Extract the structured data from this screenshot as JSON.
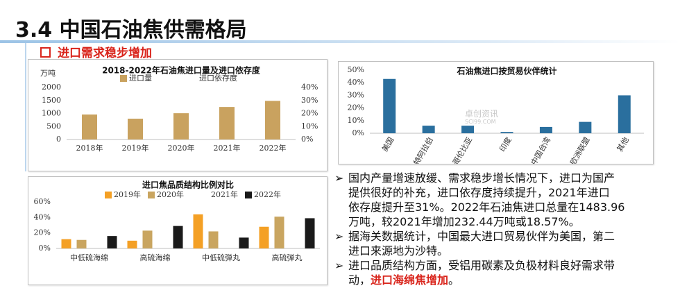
{
  "header": {
    "title": "3.4 中国石油焦供需格局",
    "subtitle": "进口需求稳步增加"
  },
  "watermark": {
    "cn": "卓创资讯",
    "en": "SCI99.COM"
  },
  "chart_data": [
    {
      "type": "bar",
      "title": "2018-2022年石油焦进口量及进口依存度",
      "y_unit": "万吨",
      "categories": [
        "2018年",
        "2019年",
        "2020年",
        "2021年",
        "2022年"
      ],
      "series": [
        {
          "name": "进口量",
          "color": "#c9a25f",
          "values": [
            960,
            800,
            1010,
            1250,
            1484
          ]
        },
        {
          "name": "进口依存度",
          "color": "#ffffff",
          "axis": "y2",
          "type": "line",
          "values": [
            null,
            null,
            null,
            null,
            null
          ]
        }
      ],
      "ylim": [
        0,
        2000
      ],
      "yticks": [
        0,
        500,
        1000,
        1500,
        2000
      ],
      "y2lim": [
        0,
        40
      ],
      "y2ticks": [
        {
          "value": 0,
          "label": "0%"
        },
        {
          "value": 10,
          "label": "10%"
        },
        {
          "value": 20,
          "label": "20%"
        },
        {
          "value": 30,
          "label": "30%"
        },
        {
          "value": 40,
          "label": "40%"
        }
      ]
    },
    {
      "type": "bar",
      "title": "石油焦进口按贸易伙伴统计",
      "categories": [
        "美国",
        "沙特阿拉伯",
        "哥伦比亚",
        "印度",
        "中国台湾",
        "欧洲联盟",
        "其他"
      ],
      "values": [
        43,
        6,
        6,
        1,
        5,
        9,
        30
      ],
      "color": "#2a6f9e",
      "ylim": [
        0,
        50
      ],
      "yticks": [
        {
          "value": 0,
          "label": "0%"
        },
        {
          "value": 10,
          "label": "10%"
        },
        {
          "value": 20,
          "label": "20%"
        },
        {
          "value": 30,
          "label": "30%"
        },
        {
          "value": 40,
          "label": "40%"
        },
        {
          "value": 50,
          "label": "50%"
        }
      ]
    },
    {
      "type": "bar",
      "title": "进口焦品质结构比例对比",
      "categories": [
        "中低硫海绵",
        "高硫海绵",
        "中低硫弹丸",
        "高硫弹丸"
      ],
      "series": [
        {
          "name": "2019年",
          "color": "#f4a025",
          "values": [
            12,
            10,
            44,
            28
          ]
        },
        {
          "name": "2020年",
          "color": "#c9a560",
          "values": [
            11,
            23,
            22,
            41
          ]
        },
        {
          "name": "2021年",
          "color": "#ffffff",
          "values": [
            null,
            null,
            null,
            null
          ]
        },
        {
          "name": "2022年",
          "color": "#1a1a1a",
          "values": [
            16,
            29,
            14,
            39
          ]
        }
      ],
      "ylim": [
        0,
        60
      ],
      "yticks": [
        {
          "value": 0,
          "label": "0%"
        },
        {
          "value": 20,
          "label": "20%"
        },
        {
          "value": 40,
          "label": "40%"
        },
        {
          "value": 60,
          "label": "60%"
        }
      ]
    }
  ],
  "bullets": [
    {
      "lines": [
        "国内产量增速放缓、需求稳步增长情况下，进口为国产",
        "提供很好的补充，进口依存度持续提升，2021年进口",
        "依存度提升至31%。2022年石油焦进口总量在1483.96",
        "万吨，较2021年增加232.44万吨或18.57%。"
      ]
    },
    {
      "lines": [
        "据海关数据统计，中国最大进口贸易伙伴为美国，第二",
        "进口来源地为沙特。"
      ]
    },
    {
      "lines": [
        "进口品质结构方面，受铝用碳素及负极材料良好需求带",
        "动，"
      ],
      "highlight": "进口海绵焦增加",
      "tail": "。"
    }
  ]
}
